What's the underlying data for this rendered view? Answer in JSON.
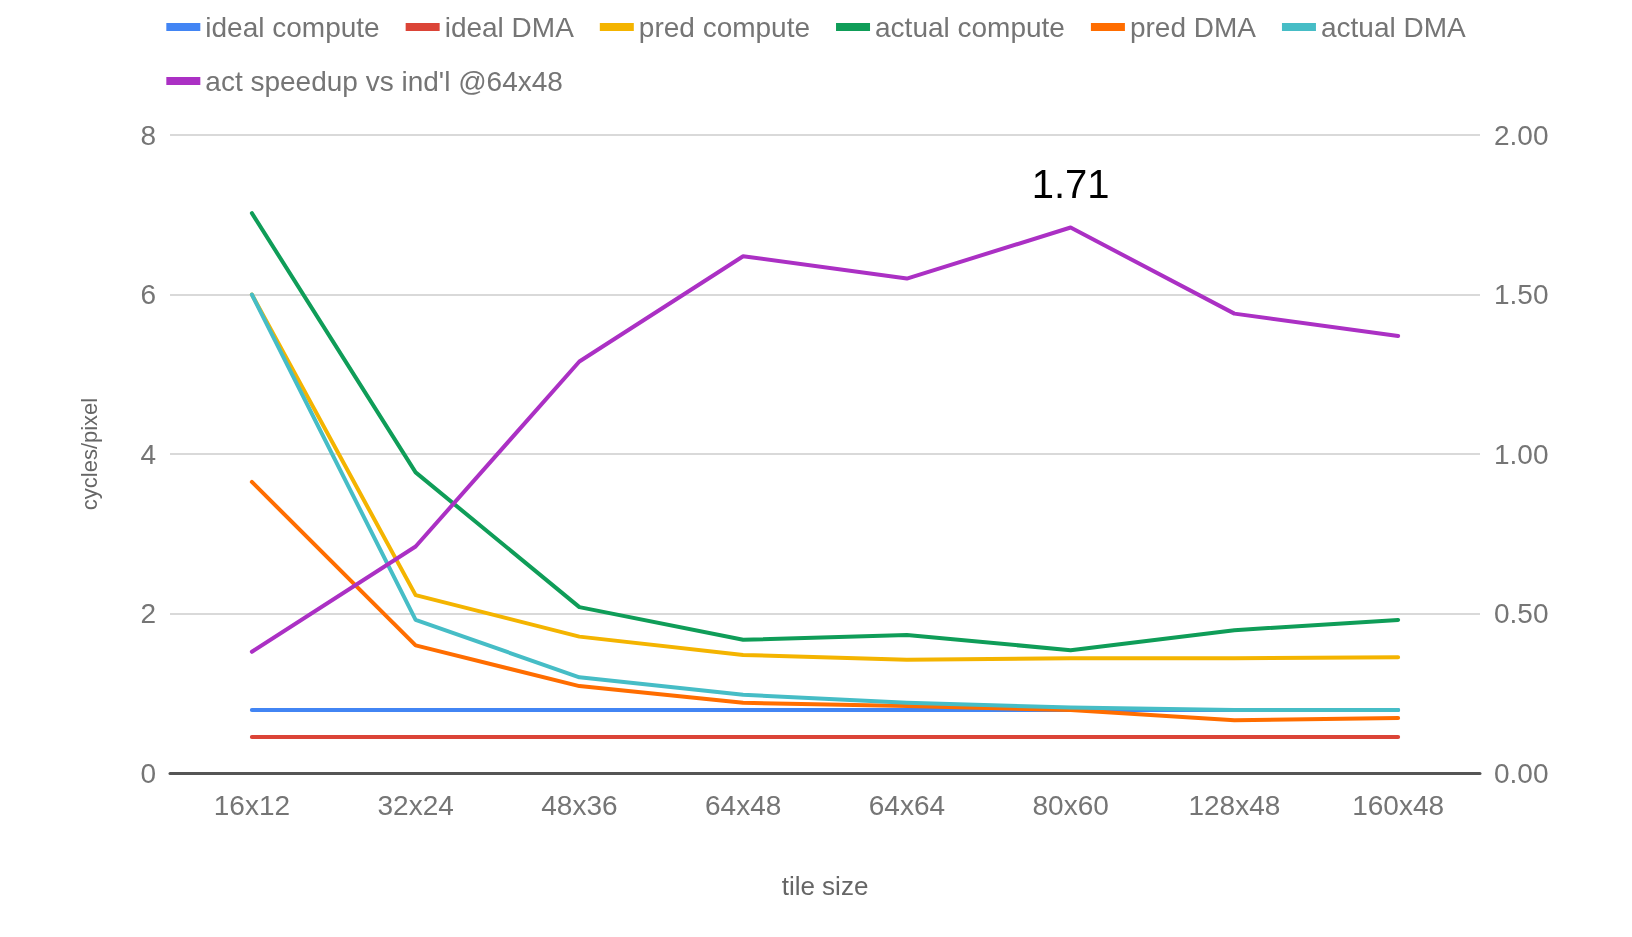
{
  "chart_data": {
    "type": "line",
    "xlabel": "tile size",
    "ylabel": "cycles/pixel",
    "categories": [
      "16x12",
      "32x24",
      "48x36",
      "64x48",
      "64x64",
      "80x60",
      "128x48",
      "160x48"
    ],
    "series": [
      {
        "name": "ideal compute",
        "color": "#4285f4",
        "values": [
          0.79,
          0.79,
          0.79,
          0.79,
          0.79,
          0.79,
          0.79,
          0.79
        ]
      },
      {
        "name": "ideal DMA",
        "color": "#db4437",
        "values": [
          0.45,
          0.45,
          0.45,
          0.45,
          0.45,
          0.45,
          0.45,
          0.45
        ]
      },
      {
        "name": "pred compute",
        "color": "#f4b400",
        "values": [
          6.0,
          2.23,
          1.71,
          1.48,
          1.42,
          1.44,
          1.44,
          1.45
        ]
      },
      {
        "name": "actual compute",
        "color": "#0f9d58",
        "values": [
          7.02,
          3.77,
          2.08,
          1.67,
          1.73,
          1.54,
          1.79,
          1.92
        ]
      },
      {
        "name": "pred DMA",
        "color": "#ff6d00",
        "values": [
          3.65,
          1.6,
          1.09,
          0.88,
          0.84,
          0.79,
          0.66,
          0.69
        ]
      },
      {
        "name": "actual DMA",
        "color": "#46bdc6",
        "values": [
          6.0,
          1.92,
          1.2,
          0.98,
          0.88,
          0.82,
          0.79,
          0.79
        ]
      },
      {
        "name": "act speedup vs ind'l @64x48",
        "color": "#ab30c4",
        "axis": "y2",
        "values": [
          0.38,
          0.71,
          1.29,
          1.62,
          1.55,
          1.71,
          1.44,
          1.37
        ],
        "value_labels": [
          null,
          null,
          null,
          null,
          null,
          "1.71",
          null,
          null
        ]
      }
    ],
    "ylim": [
      0,
      8
    ],
    "yticks": [
      0,
      2,
      4,
      6,
      8
    ],
    "y2lim": [
      0,
      2
    ],
    "y2ticks": [
      {
        "value": 0,
        "label": "0.00"
      },
      {
        "value": 0.5,
        "label": "0.50"
      },
      {
        "value": 1,
        "label": "1.00"
      },
      {
        "value": 1.5,
        "label": "1.50"
      },
      {
        "value": 2,
        "label": "2.00"
      }
    ],
    "grid": "y",
    "legend": "top",
    "marker": "none",
    "line_style": "solid"
  }
}
